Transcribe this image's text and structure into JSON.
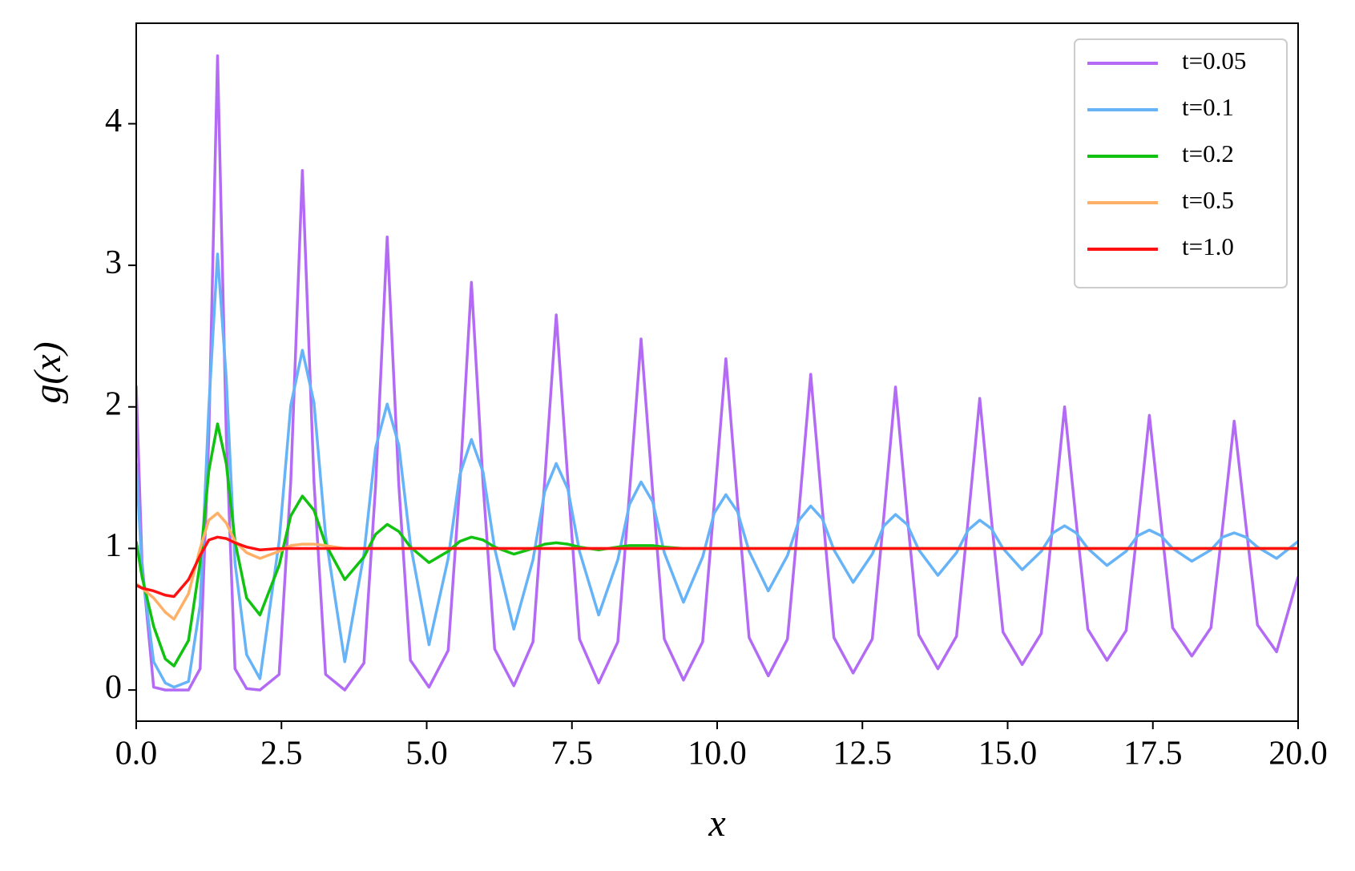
{
  "chart_data": {
    "type": "line",
    "xlabel": "x",
    "ylabel": "g(x)",
    "xlim": [
      0,
      20
    ],
    "ylim": [
      -0.22,
      4.71
    ],
    "xticks": [
      {
        "value": 0,
        "label": "0.0"
      },
      2.5,
      {
        "value": 5,
        "label": "5.0"
      },
      7.5,
      {
        "value": 10,
        "label": "10.0"
      },
      12.5,
      {
        "value": 15,
        "label": "15.0"
      },
      17.5,
      {
        "value": 20,
        "label": "20.0"
      }
    ],
    "yticks": [
      0,
      1,
      2,
      3,
      4
    ],
    "grid": false,
    "legend": "upper right",
    "x": [
      0,
      0.1,
      0.3,
      0.5,
      0.65,
      0.9,
      1.1,
      1.25,
      1.4,
      1.55,
      1.7,
      1.9,
      2.13,
      2.46,
      2.66,
      2.86,
      3.06,
      3.26,
      3.59,
      3.92,
      4.12,
      4.32,
      4.52,
      4.72,
      5.04,
      5.37,
      5.57,
      5.77,
      5.97,
      6.17,
      6.5,
      6.83,
      7.03,
      7.23,
      7.43,
      7.63,
      7.96,
      8.29,
      8.49,
      8.69,
      8.89,
      9.09,
      9.42,
      9.75,
      9.95,
      10.15,
      10.35,
      10.55,
      10.88,
      11.21,
      11.41,
      11.61,
      11.81,
      12.01,
      12.34,
      12.67,
      12.87,
      13.07,
      13.27,
      13.47,
      13.8,
      14.12,
      14.32,
      14.52,
      14.72,
      14.92,
      15.25,
      15.58,
      15.78,
      15.98,
      16.18,
      16.38,
      16.71,
      17.04,
      17.24,
      17.44,
      17.64,
      17.84,
      18.17,
      18.5,
      18.7,
      18.9,
      19.1,
      19.3,
      19.63,
      20.0
    ],
    "series": [
      {
        "name": "t=0.05",
        "color": "#b36bf5",
        "values": [
          2.15,
          0.9,
          0.02,
          0,
          0,
          0,
          0.15,
          1.8,
          4.48,
          1.8,
          0.15,
          0.01,
          0,
          0.11,
          1.47,
          3.67,
          1.47,
          0.11,
          0,
          0.19,
          1.44,
          3.2,
          1.45,
          0.21,
          0.02,
          0.28,
          1.45,
          2.88,
          1.46,
          0.29,
          0.03,
          0.34,
          1.47,
          2.65,
          1.48,
          0.36,
          0.05,
          0.34,
          1.39,
          2.48,
          1.4,
          0.36,
          0.07,
          0.34,
          1.32,
          2.34,
          1.33,
          0.37,
          0.1,
          0.36,
          1.27,
          2.23,
          1.28,
          0.37,
          0.12,
          0.36,
          1.23,
          2.14,
          1.24,
          0.39,
          0.15,
          0.38,
          1.2,
          2.06,
          1.21,
          0.41,
          0.18,
          0.4,
          1.18,
          2.0,
          1.19,
          0.43,
          0.21,
          0.42,
          1.16,
          1.94,
          1.18,
          0.44,
          0.24,
          0.44,
          1.15,
          1.9,
          1.17,
          0.46,
          0.27,
          0.8
        ]
      },
      {
        "name": "t=0.1",
        "color": "#66b3f7",
        "values": [
          1.6,
          0.85,
          0.2,
          0.05,
          0.02,
          0.06,
          0.6,
          2.0,
          3.08,
          2.2,
          0.9,
          0.25,
          0.08,
          1.05,
          2.01,
          2.4,
          2.03,
          1.09,
          0.2,
          0.96,
          1.71,
          2.02,
          1.73,
          1.03,
          0.32,
          0.93,
          1.52,
          1.77,
          1.54,
          1.0,
          0.43,
          0.92,
          1.4,
          1.6,
          1.42,
          0.98,
          0.53,
          0.92,
          1.31,
          1.47,
          1.33,
          0.97,
          0.62,
          0.94,
          1.25,
          1.38,
          1.26,
          0.98,
          0.7,
          0.95,
          1.2,
          1.3,
          1.21,
          0.99,
          0.76,
          0.96,
          1.16,
          1.24,
          1.17,
          0.99,
          0.81,
          0.97,
          1.13,
          1.2,
          1.14,
          1.0,
          0.85,
          0.98,
          1.11,
          1.16,
          1.11,
          1.0,
          0.88,
          0.98,
          1.09,
          1.13,
          1.09,
          1.0,
          0.91,
          0.99,
          1.08,
          1.11,
          1.08,
          1.01,
          0.93,
          1.05
        ]
      },
      {
        "name": "t=0.2",
        "color": "#11c211",
        "values": [
          1.05,
          0.8,
          0.45,
          0.22,
          0.17,
          0.35,
          0.9,
          1.55,
          1.88,
          1.6,
          1.05,
          0.65,
          0.53,
          0.88,
          1.23,
          1.37,
          1.27,
          1.03,
          0.78,
          0.94,
          1.1,
          1.17,
          1.12,
          1.01,
          0.9,
          0.98,
          1.05,
          1.08,
          1.06,
          1.01,
          0.96,
          1.0,
          1.03,
          1.04,
          1.03,
          1.01,
          0.99,
          1.01,
          1.02,
          1.02,
          1.02,
          1.01,
          1.0,
          1,
          1,
          1,
          1,
          1,
          1,
          1,
          1,
          1,
          1,
          1,
          1,
          1,
          1,
          1,
          1,
          1,
          1,
          1,
          1,
          1,
          1,
          1,
          1,
          1,
          1,
          1,
          1,
          1,
          1,
          1,
          1,
          1,
          1,
          1,
          1,
          1,
          1,
          1,
          1,
          1,
          1,
          1
        ]
      },
      {
        "name": "t=0.5",
        "color": "#ffb066",
        "values": [
          0.75,
          0.72,
          0.65,
          0.55,
          0.5,
          0.68,
          1.0,
          1.2,
          1.25,
          1.18,
          1.05,
          0.97,
          0.93,
          0.98,
          1.02,
          1.03,
          1.03,
          1.02,
          1.0,
          1,
          1,
          1,
          1,
          1,
          1,
          1,
          1,
          1,
          1,
          1,
          1,
          1,
          1,
          1,
          1,
          1,
          1,
          1,
          1,
          1,
          1,
          1,
          1,
          1,
          1,
          1,
          1,
          1,
          1,
          1,
          1,
          1,
          1,
          1,
          1,
          1,
          1,
          1,
          1,
          1,
          1,
          1,
          1,
          1,
          1,
          1,
          1,
          1,
          1,
          1,
          1,
          1,
          1,
          1,
          1,
          1,
          1,
          1,
          1,
          1,
          1,
          1,
          1,
          1,
          1,
          1
        ]
      },
      {
        "name": "t=1.0",
        "color": "#ff1111",
        "values": [
          0.74,
          0.72,
          0.7,
          0.67,
          0.66,
          0.78,
          0.95,
          1.06,
          1.08,
          1.07,
          1.04,
          1.01,
          0.99,
          1,
          1,
          1,
          1,
          1,
          1,
          1,
          1,
          1,
          1,
          1,
          1,
          1,
          1,
          1,
          1,
          1,
          1,
          1,
          1,
          1,
          1,
          1,
          1,
          1,
          1,
          1,
          1,
          1,
          1,
          1,
          1,
          1,
          1,
          1,
          1,
          1,
          1,
          1,
          1,
          1,
          1,
          1,
          1,
          1,
          1,
          1,
          1,
          1,
          1,
          1,
          1,
          1,
          1,
          1,
          1,
          1,
          1,
          1,
          1,
          1,
          1,
          1,
          1,
          1,
          1,
          1,
          1,
          1,
          1,
          1,
          1,
          1
        ]
      }
    ]
  }
}
